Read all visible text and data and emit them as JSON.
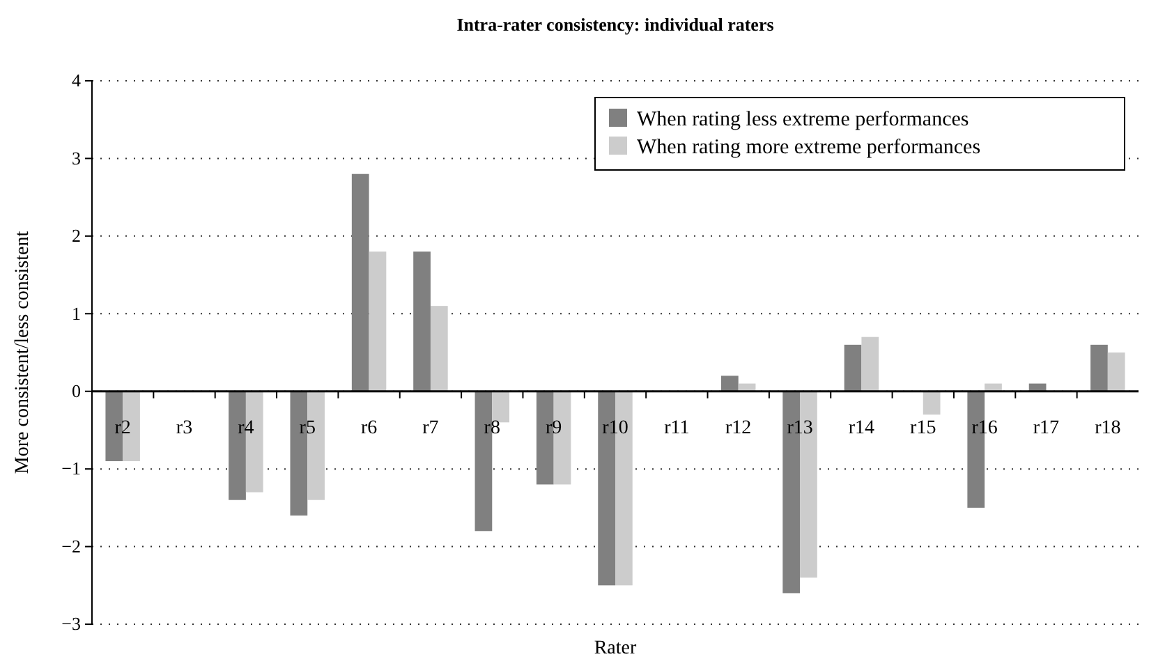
{
  "chart_data": {
    "type": "bar",
    "title": "Intra-rater consistency: individual raters",
    "xlabel": "Rater",
    "ylabel": "More consistent/less consistent",
    "categories": [
      "r2",
      "r3",
      "r4",
      "r5",
      "r6",
      "r7",
      "r8",
      "r9",
      "r10",
      "r11",
      "r12",
      "r13",
      "r14",
      "r15",
      "r16",
      "r17",
      "r18"
    ],
    "series": [
      {
        "name": "When rating less extreme performances",
        "color": "#808080",
        "values": [
          -0.9,
          0,
          -1.4,
          -1.6,
          2.8,
          1.8,
          -1.8,
          -1.2,
          -2.5,
          0,
          0.2,
          -2.6,
          0.6,
          0,
          -1.5,
          0.1,
          0.6
        ]
      },
      {
        "name": "When rating more extreme performances",
        "color": "#cccccc",
        "values": [
          -0.9,
          0,
          -1.3,
          -1.4,
          1.8,
          1.1,
          -0.4,
          -1.2,
          -2.5,
          0,
          0.1,
          -2.4,
          0.7,
          -0.3,
          0.1,
          0,
          0.5
        ]
      }
    ],
    "ylim": [
      -3,
      4
    ],
    "yticks": [
      {
        "value": -3,
        "label": "−3"
      },
      {
        "value": -2,
        "label": "−2"
      },
      {
        "value": -1,
        "label": "−1"
      },
      0,
      1,
      2,
      3,
      4
    ],
    "grid": "y",
    "legend": "top right"
  }
}
